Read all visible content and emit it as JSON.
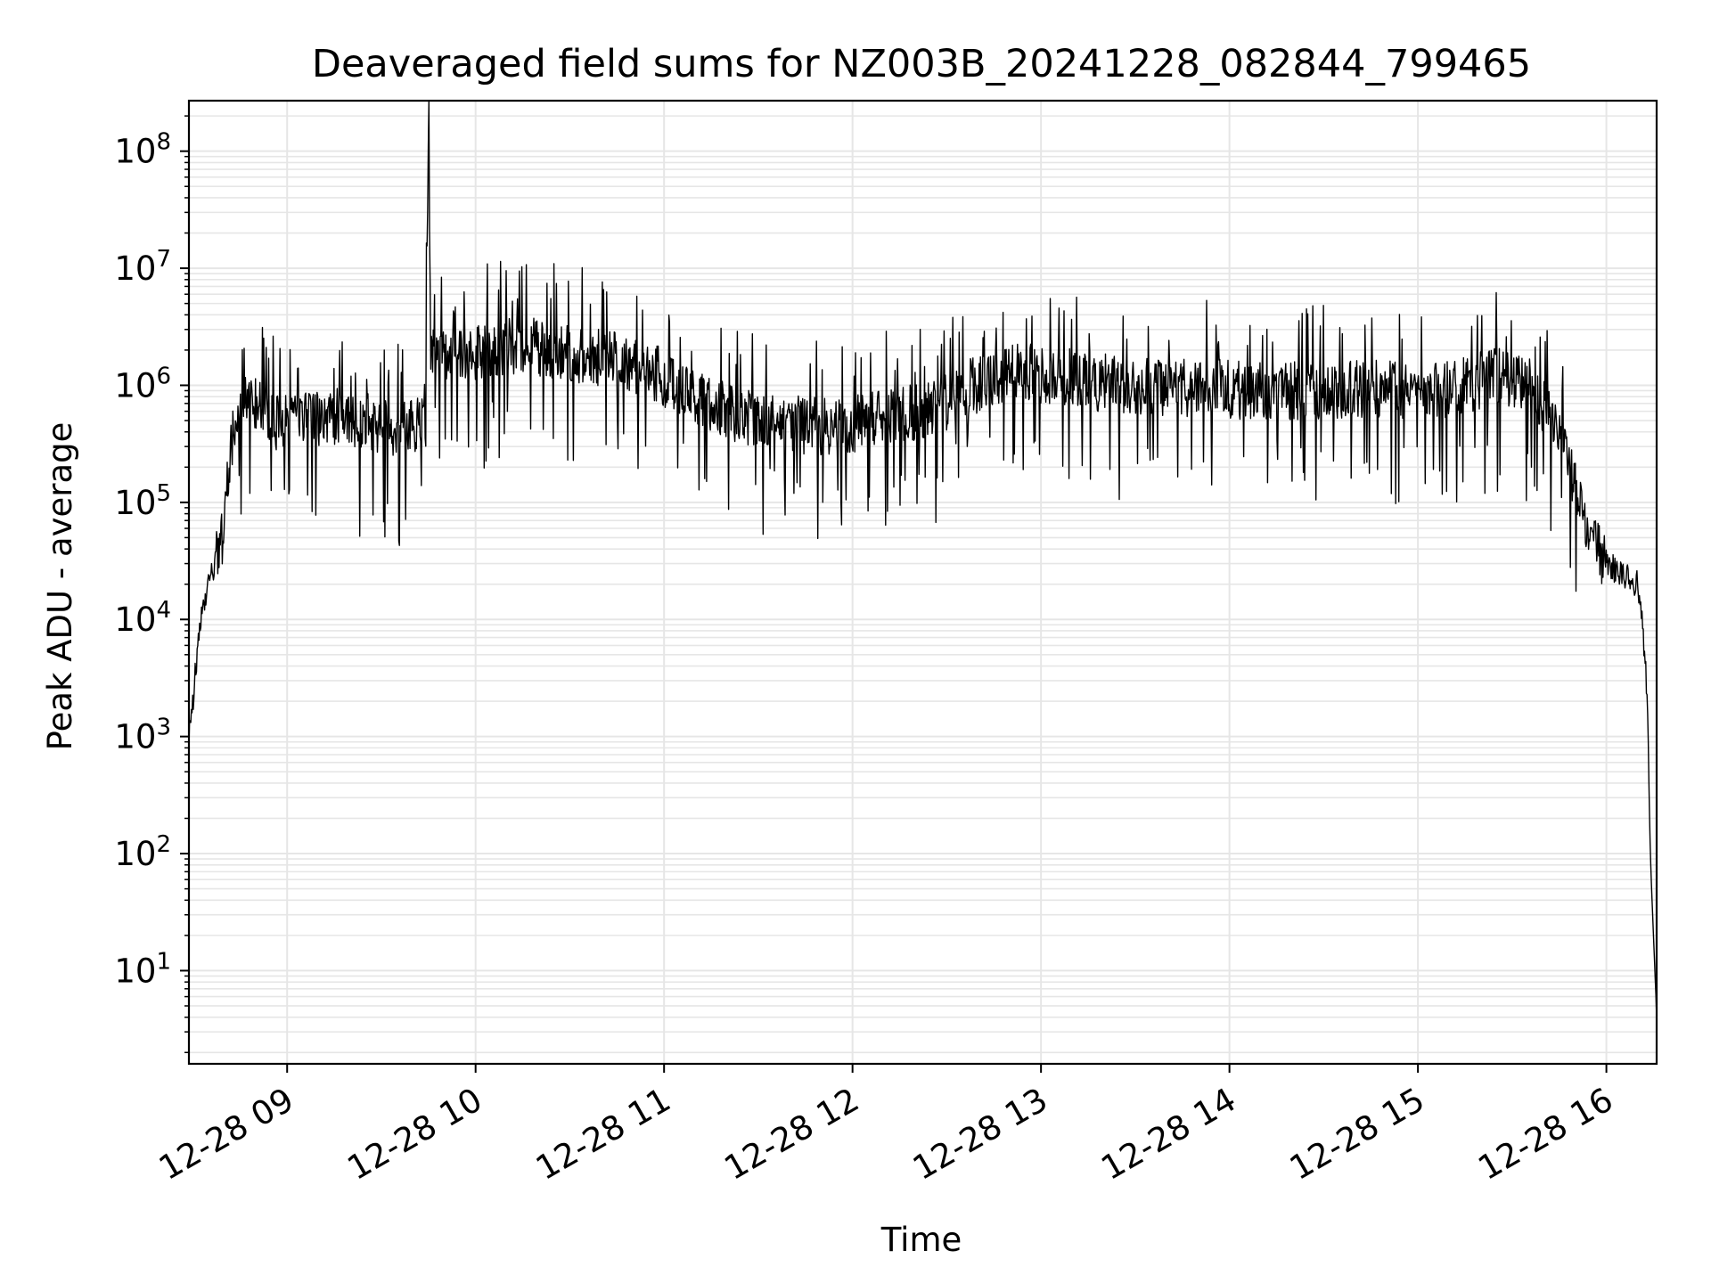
{
  "chart_data": {
    "type": "line",
    "title": "Deaveraged field sums for NZ003B_20241228_082844_799465",
    "xlabel": "Time",
    "ylabel": "Peak ADU - average",
    "yscale": "log",
    "ylim": [
      1.6,
      270000000.0
    ],
    "xlim": [
      "2024-12-28 08:28:44",
      "2024-12-28 16:16:00"
    ],
    "grid": true,
    "line_color": "#000000",
    "grid_color": "#e6e6e6",
    "x_ticks": [
      {
        "value": "2024-12-28 09:00",
        "label": "12-28 09"
      },
      {
        "value": "2024-12-28 10:00",
        "label": "12-28 10"
      },
      {
        "value": "2024-12-28 11:00",
        "label": "12-28 11"
      },
      {
        "value": "2024-12-28 12:00",
        "label": "12-28 12"
      },
      {
        "value": "2024-12-28 13:00",
        "label": "12-28 13"
      },
      {
        "value": "2024-12-28 14:00",
        "label": "12-28 14"
      },
      {
        "value": "2024-12-28 15:00",
        "label": "12-28 15"
      },
      {
        "value": "2024-12-28 16:00",
        "label": "12-28 16"
      }
    ],
    "y_ticks": [
      {
        "value": 10,
        "base": "10",
        "exp": "1"
      },
      {
        "value": 100,
        "base": "10",
        "exp": "2"
      },
      {
        "value": 1000,
        "base": "10",
        "exp": "3"
      },
      {
        "value": 10000,
        "base": "10",
        "exp": "4"
      },
      {
        "value": 100000,
        "base": "10",
        "exp": "5"
      },
      {
        "value": 1000000,
        "base": "10",
        "exp": "6"
      },
      {
        "value": 10000000,
        "base": "10",
        "exp": "7"
      },
      {
        "value": 100000000,
        "base": "10",
        "exp": "8"
      }
    ],
    "series": [
      {
        "x": [
          "2024-12-28 08:28:44",
          "2024-12-28 08:30",
          "2024-12-28 08:32",
          "2024-12-28 08:34",
          "2024-12-28 08:36",
          "2024-12-28 08:38",
          "2024-12-28 08:40",
          "2024-12-28 08:42",
          "2024-12-28 08:44",
          "2024-12-28 08:46",
          "2024-12-28 08:48",
          "2024-12-28 08:50",
          "2024-12-28 08:52",
          "2024-12-28 08:54",
          "2024-12-28 08:56",
          "2024-12-28 08:58",
          "2024-12-28 09:05",
          "2024-12-28 09:15",
          "2024-12-28 09:25",
          "2024-12-28 09:35",
          "2024-12-28 09:40",
          "2024-12-28 09:44",
          "2024-12-28 09:45",
          "2024-12-28 09:46",
          "2024-12-28 09:48",
          "2024-12-28 09:55",
          "2024-12-28 10:05",
          "2024-12-28 10:15",
          "2024-12-28 10:25",
          "2024-12-28 10:35",
          "2024-12-28 10:45",
          "2024-12-28 10:55",
          "2024-12-28 11:05",
          "2024-12-28 11:15",
          "2024-12-28 11:25",
          "2024-12-28 11:35",
          "2024-12-28 11:45",
          "2024-12-28 11:55",
          "2024-12-28 12:05",
          "2024-12-28 12:15",
          "2024-12-28 12:25",
          "2024-12-28 12:35",
          "2024-12-28 12:45",
          "2024-12-28 12:55",
          "2024-12-28 13:05",
          "2024-12-28 13:15",
          "2024-12-28 13:25",
          "2024-12-28 13:35",
          "2024-12-28 13:45",
          "2024-12-28 13:55",
          "2024-12-28 14:05",
          "2024-12-28 14:15",
          "2024-12-28 14:25",
          "2024-12-28 14:35",
          "2024-12-28 14:45",
          "2024-12-28 14:55",
          "2024-12-28 15:05",
          "2024-12-28 15:15",
          "2024-12-28 15:25",
          "2024-12-28 15:35",
          "2024-12-28 15:45",
          "2024-12-28 15:50",
          "2024-12-28 15:55",
          "2024-12-28 16:00",
          "2024-12-28 16:05",
          "2024-12-28 16:10",
          "2024-12-28 16:12",
          "2024-12-28 16:13",
          "2024-12-28 16:14",
          "2024-12-28 16:16"
        ],
        "y": [
          1000,
          2000,
          8000,
          15000,
          25000,
          35000,
          60000,
          300000,
          600000,
          700000,
          800000,
          700000,
          600000,
          550000,
          500000,
          450000,
          500000,
          550000,
          500000,
          400000,
          450000,
          600000,
          110000000,
          2000000,
          1800000,
          1800000,
          2000000,
          2200000,
          2000000,
          1800000,
          1600000,
          1400000,
          900000,
          700000,
          550000,
          500000,
          450000,
          450000,
          500000,
          550000,
          600000,
          900000,
          1200000,
          1300000,
          1200000,
          1100000,
          1000000,
          1000000,
          950000,
          950000,
          900000,
          900000,
          900000,
          900000,
          950000,
          900000,
          900000,
          1000000,
          1200000,
          1000000,
          400000,
          150000,
          50000,
          30000,
          25000,
          20000,
          6000,
          2000,
          100,
          4
        ]
      }
    ]
  }
}
